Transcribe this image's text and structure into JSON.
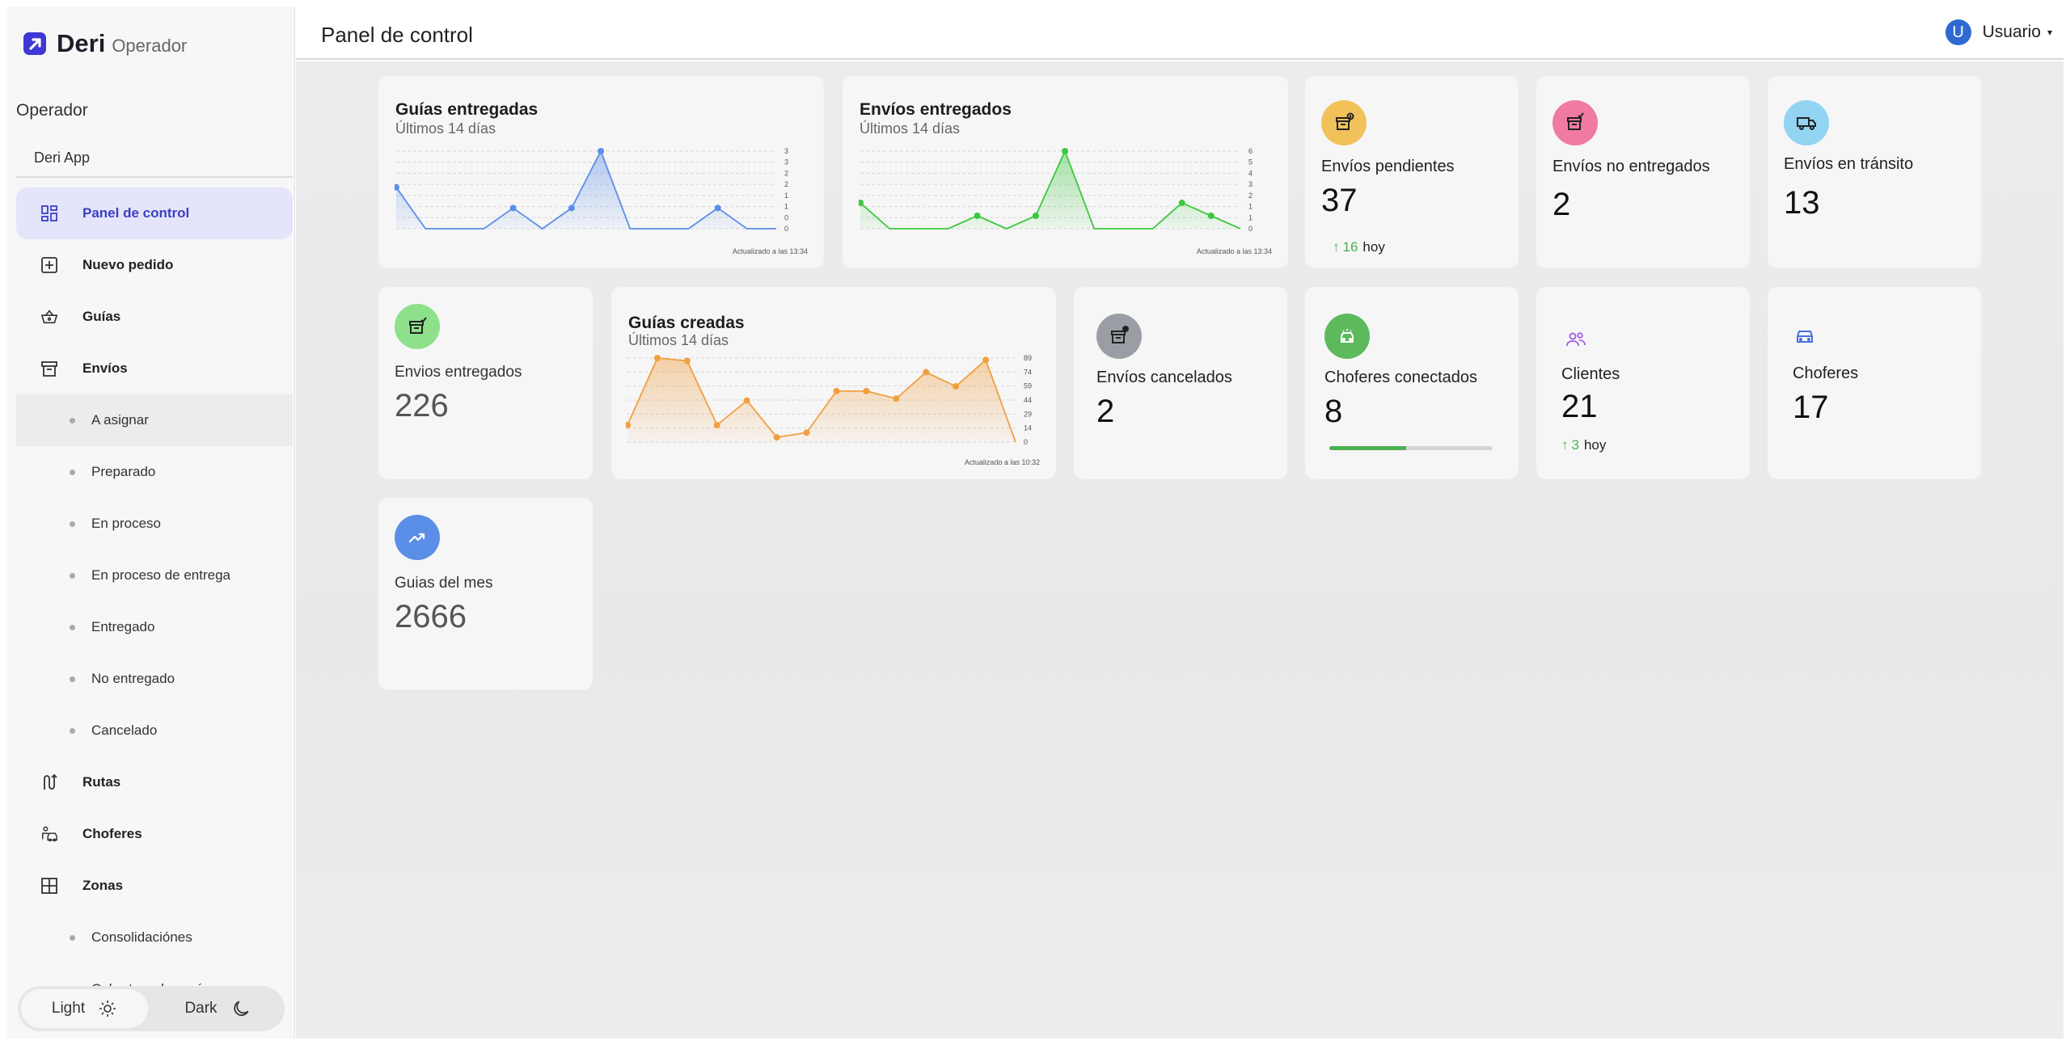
{
  "sidebar": {
    "brand_name": "Deri",
    "brand_sub": "Operador",
    "role": "Operador",
    "app_name": "Deri App",
    "nav": [
      {
        "label": "Panel de control"
      },
      {
        "label": "Nuevo pedido"
      },
      {
        "label": "Guías"
      },
      {
        "label": "Envíos"
      },
      {
        "label": "A asignar"
      },
      {
        "label": "Preparado"
      },
      {
        "label": "En proceso"
      },
      {
        "label": "En proceso de entrega"
      },
      {
        "label": "Entregado"
      },
      {
        "label": "No entregado"
      },
      {
        "label": "Cancelado"
      },
      {
        "label": "Rutas"
      },
      {
        "label": "Choferes"
      },
      {
        "label": "Zonas"
      },
      {
        "label": "Consolidaciónes"
      },
      {
        "label": "Cobertura de envíos"
      }
    ],
    "theme": {
      "light": "Light",
      "dark": "Dark"
    }
  },
  "header": {
    "title": "Panel de control",
    "avatar_initial": "U",
    "user": "Usuario"
  },
  "colors": {
    "accent": "#3c3fc4",
    "blue": "#5b8ee6",
    "green": "#3cc83c",
    "orange": "#f0a040"
  },
  "cards": {
    "guias_entregadas": {
      "title": "Guías entregadas",
      "sub": "Últimos 14 días",
      "updated": "Actualizado a las 13:34"
    },
    "envios_entregados_chart": {
      "title": "Envíos entregados",
      "sub": "Últimos 14 días",
      "updated": "Actualizado a las 13:34"
    },
    "pendientes": {
      "label": "Envíos pendientes",
      "value": "37",
      "delta": "16",
      "delta_suffix": "hoy"
    },
    "no_entregados": {
      "label": "Envíos no entregados",
      "value": "2"
    },
    "transito": {
      "label": "Envíos en tránsito",
      "value": "13"
    },
    "entregados_stat": {
      "label": "Envios entregados",
      "value": "226"
    },
    "guias_creadas": {
      "title": "Guías creadas",
      "sub": "Últimos 14 días",
      "updated": "Actualizado a las 10:32"
    },
    "cancelados": {
      "label": "Envíos cancelados",
      "value": "2"
    },
    "choferes_conectados": {
      "label": "Choferes conectados",
      "value": "8",
      "progress": 0.47
    },
    "clientes": {
      "label": "Clientes",
      "value": "21",
      "delta": "3",
      "delta_suffix": "hoy"
    },
    "choferes": {
      "label": "Choferes",
      "value": "17"
    },
    "guias_mes": {
      "label": "Guias del mes",
      "value": "2666"
    }
  },
  "chart_data": [
    {
      "type": "area",
      "title": "Guías entregadas",
      "subtitle": "Últimos 14 días",
      "x": [
        1,
        2,
        3,
        4,
        5,
        6,
        7,
        8,
        9,
        10,
        11,
        12,
        13,
        14
      ],
      "values": [
        1.6,
        0,
        0,
        0,
        0.8,
        0,
        0.8,
        3,
        0,
        0,
        0,
        0.8,
        0,
        0
      ],
      "yticks": [
        "3",
        "3",
        "2",
        "2",
        "1",
        "1",
        "0",
        "0"
      ],
      "ylim": [
        0,
        3
      ],
      "color": "#5b8ee6",
      "grid": true
    },
    {
      "type": "area",
      "title": "Envíos entregados",
      "subtitle": "Últimos 14 días",
      "x": [
        1,
        2,
        3,
        4,
        5,
        6,
        7,
        8,
        9,
        10,
        11,
        12,
        13,
        14
      ],
      "values": [
        2,
        0,
        0,
        0,
        1,
        0,
        1,
        6,
        0,
        0,
        0,
        2,
        1,
        0
      ],
      "yticks": [
        "6",
        "5",
        "4",
        "3",
        "2",
        "1",
        "1",
        "0"
      ],
      "ylim": [
        0,
        6
      ],
      "color": "#3cc83c",
      "grid": true
    },
    {
      "type": "area",
      "title": "Guías creadas",
      "subtitle": "Últimos 14 días",
      "x": [
        1,
        2,
        3,
        4,
        5,
        6,
        7,
        8,
        9,
        10,
        11,
        12,
        13,
        14
      ],
      "values": [
        18,
        89,
        86,
        18,
        44,
        5,
        10,
        54,
        54,
        46,
        74,
        59,
        87,
        0
      ],
      "yticks": [
        "89",
        "74",
        "59",
        "44",
        "29",
        "14",
        "0"
      ],
      "ylim": [
        0,
        89
      ],
      "color": "#f0a040",
      "grid": true
    }
  ]
}
